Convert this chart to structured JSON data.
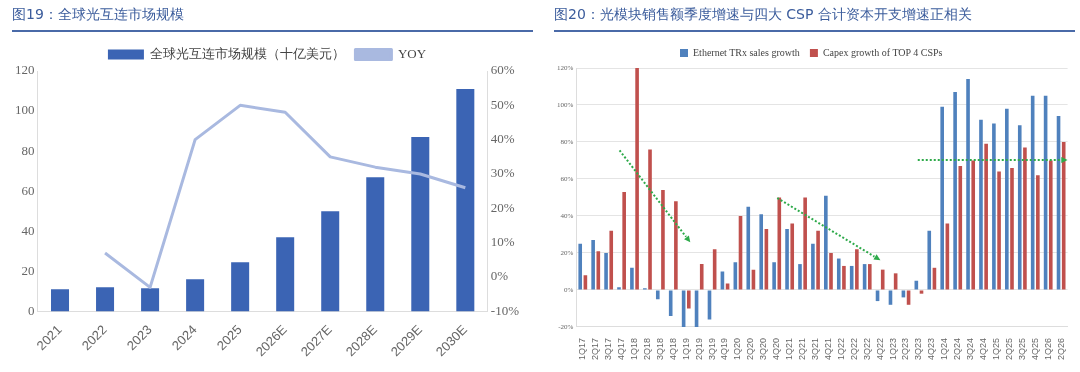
{
  "chart_data": [
    {
      "type": "bar",
      "title": "图19：全球光互连市场规模",
      "categories": [
        "2021",
        "2022",
        "2023",
        "2024",
        "2025",
        "2026E",
        "2027E",
        "2028E",
        "2029E",
        "2030E"
      ],
      "series": [
        {
          "name": "全球光互连市场规模（十亿美元）",
          "color": "#3b64b4",
          "values": [
            11,
            12,
            11.5,
            16,
            24.5,
            37,
            50,
            67,
            87,
            111
          ]
        },
        {
          "name": "YOY",
          "type": "line",
          "axis": "y2",
          "color": "#a9b9e0",
          "values": [
            null,
            7,
            -3,
            40,
            50,
            48,
            35,
            32,
            30,
            26
          ]
        }
      ],
      "ylim": [
        0,
        120
      ],
      "yticks": [
        0,
        20,
        40,
        60,
        80,
        100,
        120
      ],
      "y2lim": [
        -10,
        60
      ],
      "y2ticks": [
        {
          "value": -10,
          "label": "-10%"
        },
        {
          "value": 0,
          "label": "0%"
        },
        {
          "value": 10,
          "label": "10%"
        },
        {
          "value": 20,
          "label": "20%"
        },
        {
          "value": 30,
          "label": "30%"
        },
        {
          "value": 40,
          "label": "40%"
        },
        {
          "value": 50,
          "label": "50%"
        },
        {
          "value": 60,
          "label": "60%"
        }
      ],
      "grid": false,
      "legend": "top",
      "marker": "none"
    },
    {
      "type": "bar",
      "title": "图20：光模块销售额季度增速与四大 CSP 合计资本开支增速正相关",
      "categories": [
        "1Q17",
        "2Q17",
        "3Q17",
        "4Q17",
        "1Q18",
        "2Q18",
        "3Q18",
        "4Q18",
        "1Q19",
        "2Q19",
        "3Q19",
        "4Q19",
        "1Q20",
        "2Q20",
        "3Q20",
        "4Q20",
        "1Q21",
        "2Q21",
        "3Q21",
        "4Q21",
        "1Q22",
        "2Q22",
        "3Q22",
        "4Q22",
        "1Q23",
        "2Q23",
        "3Q23",
        "4Q23",
        "1Q24",
        "2Q24",
        "3Q24",
        "4Q24",
        "1Q25",
        "2Q25",
        "3Q25",
        "4Q25",
        "1Q26",
        "2Q26"
      ],
      "series": [
        {
          "name": "Ethernet TRx sales growth",
          "color": "#4f81bd",
          "values": [
            25,
            27,
            20,
            1.5,
            12,
            1,
            -5,
            -14,
            -20,
            -20,
            -16,
            10,
            15,
            45,
            41,
            15,
            33,
            14,
            25,
            51,
            17,
            13,
            14,
            -6,
            -8,
            -4,
            5,
            32,
            99,
            107,
            114,
            92,
            90,
            98,
            89,
            105,
            105,
            94
          ]
        },
        {
          "name": "Capex growth of TOP 4 CSPs",
          "color": "#c0504d",
          "values": [
            8,
            21,
            32,
            53,
            120,
            76,
            54,
            48,
            -10,
            14,
            22,
            3.5,
            40,
            11,
            33,
            50,
            36,
            50,
            32,
            20,
            13,
            22,
            14,
            11,
            9,
            -8,
            -2,
            12,
            36,
            67,
            70,
            79,
            64,
            66,
            77,
            62,
            70,
            80
          ]
        }
      ],
      "ylim": [
        -20,
        120
      ],
      "yticks": [
        {
          "value": -20,
          "label": "-20%"
        },
        {
          "value": 0,
          "label": "0%"
        },
        {
          "value": 20,
          "label": "20%"
        },
        {
          "value": 40,
          "label": "40%"
        },
        {
          "value": 60,
          "label": "60%"
        },
        {
          "value": 80,
          "label": "80%"
        },
        {
          "value": 100,
          "label": "100%"
        },
        {
          "value": 120,
          "label": "120%"
        }
      ],
      "grid": "y",
      "legend": "top"
    }
  ]
}
